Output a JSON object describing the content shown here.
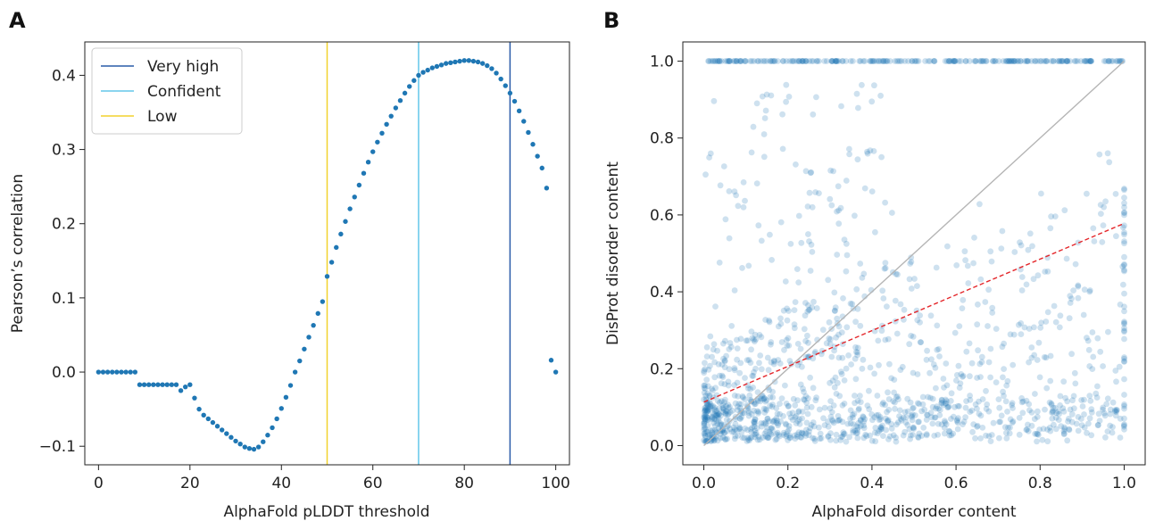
{
  "chart_data": [
    {
      "panel": "A",
      "type": "scatter",
      "xlabel": "AlphaFold pLDDT threshold",
      "ylabel": "Pearson’s correlation",
      "xlim": [
        -3,
        103
      ],
      "ylim": [
        -0.125,
        0.445
      ],
      "xticks": [
        0,
        20,
        40,
        60,
        80,
        100
      ],
      "yticks": [
        -0.1,
        0.0,
        0.1,
        0.2,
        0.3,
        0.4
      ],
      "ytick_labels": [
        "−0.1",
        "0.0",
        "0.1",
        "0.2",
        "0.3",
        "0.4"
      ],
      "grid": false,
      "legend_position": "top-left",
      "marker_color": "#1f77b4",
      "vlines": [
        {
          "x": 90,
          "label": "Very high",
          "color": "#2a5ba8"
        },
        {
          "x": 70,
          "label": "Confident",
          "color": "#63c7ea"
        },
        {
          "x": 50,
          "label": "Low",
          "color": "#f2d22e"
        }
      ],
      "series": [
        {
          "x": [
            0,
            1,
            2,
            3,
            4,
            5,
            6,
            7,
            8,
            9,
            10,
            11,
            12,
            13,
            14,
            15,
            16,
            17,
            18,
            19,
            20,
            21,
            22,
            23,
            24,
            25,
            26,
            27,
            28,
            29,
            30,
            31,
            32,
            33,
            34,
            35,
            36,
            37,
            38,
            39,
            40,
            41,
            42,
            43,
            44,
            45,
            46,
            47,
            48,
            49,
            50,
            51,
            52,
            53,
            54,
            55,
            56,
            57,
            58,
            59,
            60,
            61,
            62,
            63,
            64,
            65,
            66,
            67,
            68,
            69,
            70,
            71,
            72,
            73,
            74,
            75,
            76,
            77,
            78,
            79,
            80,
            81,
            82,
            83,
            84,
            85,
            86,
            87,
            88,
            89,
            90,
            91,
            92,
            93,
            94,
            95,
            96,
            97,
            98,
            99,
            100
          ],
          "y": [
            0.0,
            0.0,
            0.0,
            0.0,
            0.0,
            0.0,
            0.0,
            0.0,
            0.0,
            -0.017,
            -0.017,
            -0.017,
            -0.017,
            -0.017,
            -0.017,
            -0.017,
            -0.017,
            -0.017,
            -0.025,
            -0.02,
            -0.017,
            -0.035,
            -0.05,
            -0.058,
            -0.063,
            -0.068,
            -0.073,
            -0.078,
            -0.083,
            -0.088,
            -0.093,
            -0.097,
            -0.101,
            -0.103,
            -0.104,
            -0.101,
            -0.094,
            -0.085,
            -0.075,
            -0.063,
            -0.049,
            -0.034,
            -0.018,
            0.0,
            0.015,
            0.031,
            0.047,
            0.063,
            0.079,
            0.095,
            0.129,
            0.148,
            0.168,
            0.186,
            0.203,
            0.22,
            0.236,
            0.252,
            0.268,
            0.283,
            0.297,
            0.31,
            0.322,
            0.334,
            0.345,
            0.356,
            0.366,
            0.376,
            0.385,
            0.393,
            0.4,
            0.404,
            0.407,
            0.41,
            0.412,
            0.414,
            0.416,
            0.417,
            0.418,
            0.419,
            0.42,
            0.42,
            0.419,
            0.418,
            0.416,
            0.413,
            0.409,
            0.403,
            0.395,
            0.386,
            0.376,
            0.365,
            0.352,
            0.338,
            0.323,
            0.307,
            0.291,
            0.275,
            0.248,
            0.016,
            0.0
          ]
        }
      ]
    },
    {
      "panel": "B",
      "type": "scatter",
      "xlabel": "AlphaFold disorder content",
      "ylabel": "DisProt disorder content",
      "xlim": [
        -0.05,
        1.05
      ],
      "ylim": [
        -0.05,
        1.05
      ],
      "xticks": [
        0.0,
        0.2,
        0.4,
        0.6,
        0.8,
        1.0
      ],
      "yticks": [
        0.0,
        0.2,
        0.4,
        0.6,
        0.8,
        1.0
      ],
      "grid": false,
      "marker_color": "#1f77b4",
      "marker_alpha": 0.22,
      "identity_line": {
        "from": [
          0.0,
          0.0
        ],
        "to": [
          1.0,
          1.0
        ],
        "color": "#b5b5b5"
      },
      "regression_line": {
        "from": [
          0.0,
          0.113
        ],
        "to": [
          1.0,
          0.578
        ],
        "color": "#e4262a",
        "style": "dashed"
      },
      "point_count": 1600
    }
  ]
}
